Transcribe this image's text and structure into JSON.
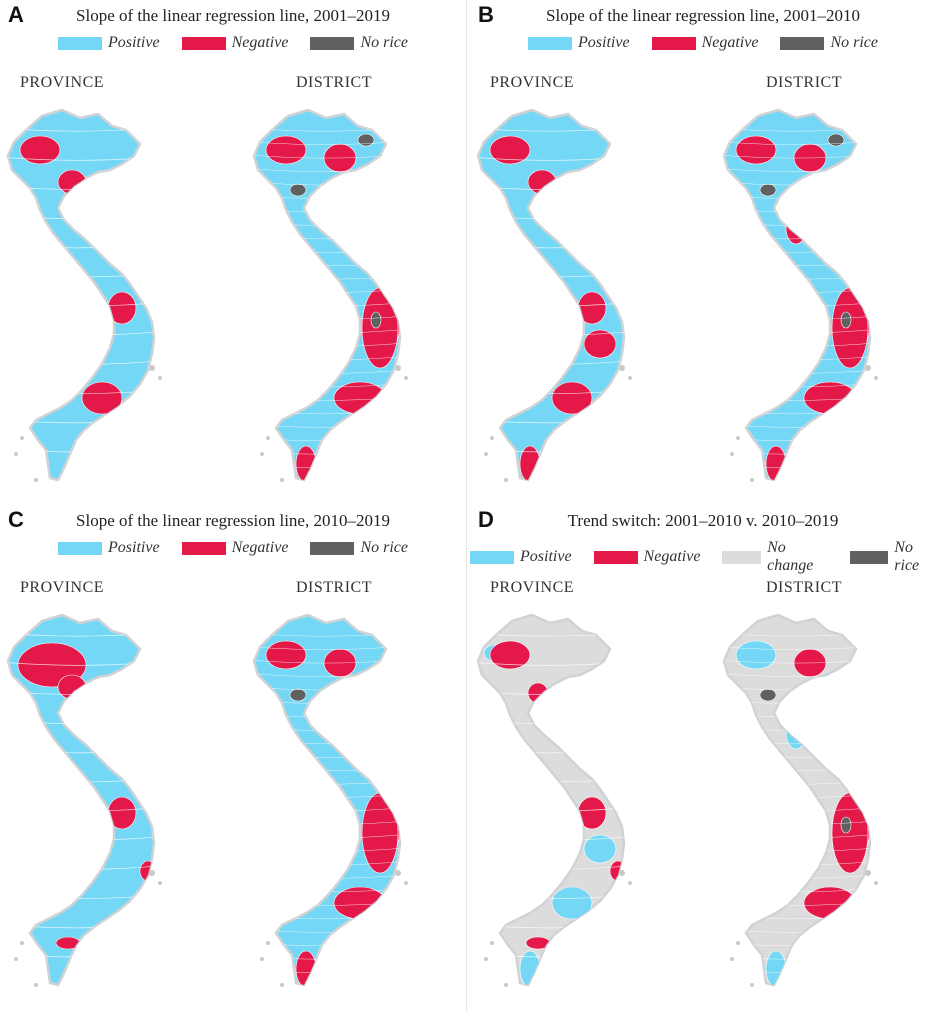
{
  "colors": {
    "positive": "#73d7f5",
    "negative": "#e5184a",
    "no_rice": "#606060",
    "no_change": "#dcdcdc",
    "outline": "#cfd3d6",
    "sea_islands": "#c8c8c8"
  },
  "columns": {
    "province": "PROVINCE",
    "district": "DISTRICT"
  },
  "panels": [
    {
      "letter": "A",
      "title": "Slope of the linear regression line, 2001–2019",
      "legend": [
        {
          "key": "positive",
          "label": "Positive"
        },
        {
          "key": "negative",
          "label": "Negative"
        },
        {
          "key": "no_rice",
          "label": "No rice"
        }
      ]
    },
    {
      "letter": "B",
      "title": "Slope of the linear regression line, 2001–2010",
      "legend": [
        {
          "key": "positive",
          "label": "Positive"
        },
        {
          "key": "negative",
          "label": "Negative"
        },
        {
          "key": "no_rice",
          "label": "No rice"
        }
      ]
    },
    {
      "letter": "C",
      "title": "Slope of the linear regression line, 2010–2019",
      "legend": [
        {
          "key": "positive",
          "label": "Positive"
        },
        {
          "key": "negative",
          "label": "Negative"
        },
        {
          "key": "no_rice",
          "label": "No rice"
        }
      ]
    },
    {
      "letter": "D",
      "title": "Trend switch: 2001–2010 v. 2010–2019",
      "legend": [
        {
          "key": "positive",
          "label": "Positive"
        },
        {
          "key": "negative",
          "label": "Negative"
        },
        {
          "key": "no_change",
          "label": "No change"
        },
        {
          "key": "no_rice",
          "label": "No rice"
        }
      ]
    }
  ],
  "maps": {
    "A": {
      "province": {
        "base": "positive",
        "negative_regions": [
          "northwest",
          "thanhhoa",
          "central_highland_n",
          "southeast_inland"
        ],
        "no_rice_regions": []
      },
      "district": {
        "base": "positive",
        "negative_regions": [
          "northwest",
          "red_delta",
          "central_coast",
          "highlands",
          "southeast",
          "mekong_tip"
        ],
        "no_rice_regions": [
          "north_east",
          "hoa_binh",
          "highlands_spot"
        ]
      }
    },
    "B": {
      "province": {
        "base": "positive",
        "negative_regions": [
          "northwest",
          "thanhhoa",
          "central_highland_n",
          "central_highland_s",
          "southeast_inland",
          "mekong_tip"
        ],
        "no_rice_regions": []
      },
      "district": {
        "base": "positive",
        "negative_regions": [
          "northwest",
          "red_delta",
          "central_coast",
          "highlands",
          "southeast",
          "mekong_tip",
          "central_north"
        ],
        "no_rice_regions": [
          "north_east",
          "hoa_binh",
          "highlands_spot"
        ]
      }
    },
    "C": {
      "province": {
        "base": "positive",
        "negative_regions": [
          "northwest_large",
          "thanhhoa",
          "central_highland_n",
          "coast_south",
          "mekong_small"
        ],
        "no_rice_regions": []
      },
      "district": {
        "base": "positive",
        "negative_regions": [
          "northwest",
          "red_delta",
          "central_coast",
          "highlands",
          "southeast",
          "mekong_tip"
        ],
        "no_rice_regions": [
          "hoa_binh"
        ]
      }
    },
    "D": {
      "province": {
        "base": "no_change",
        "negative_regions": [
          "northwest",
          "thanhhoa_small",
          "central_highland_n",
          "coast_south",
          "mekong_small"
        ],
        "positive_regions": [
          "north_west_edge",
          "central_highland_s",
          "southeast_inland",
          "mekong_tip"
        ],
        "no_rice_regions": []
      },
      "district": {
        "base": "no_change",
        "negative_regions": [
          "red_delta",
          "central_coast",
          "highlands",
          "southeast"
        ],
        "positive_regions": [
          "northwest",
          "central_north",
          "mekong_tip"
        ],
        "no_rice_regions": [
          "hoa_binh",
          "highlands_spot"
        ]
      }
    }
  }
}
